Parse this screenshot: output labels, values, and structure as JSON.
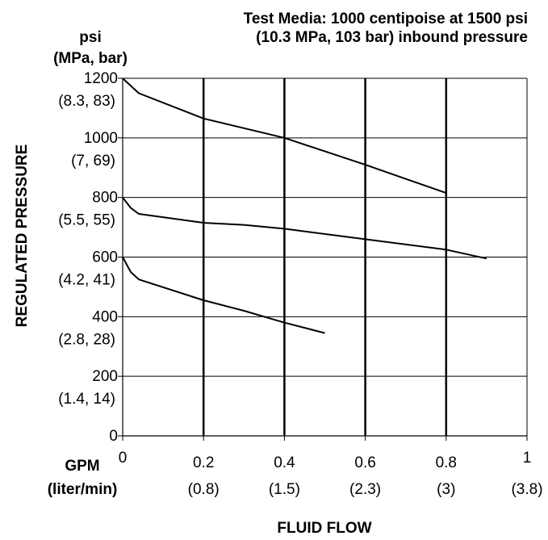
{
  "chart_data": {
    "type": "line",
    "title_lines": [
      "Test Media: 1000 centipoise at 1500 psi",
      "(10.3 MPa, 103 bar) inbound pressure"
    ],
    "xlabel": "FLUID FLOW",
    "ylabel": "REGULATED PRESSURE",
    "x_unit_lines": [
      "GPM",
      "(liter/min)"
    ],
    "y_unit_lines": [
      "psi",
      "(MPa, bar)"
    ],
    "xlim": [
      0,
      1
    ],
    "ylim": [
      0,
      1200
    ],
    "x_ticks": [
      {
        "value": 0,
        "primary": "0",
        "secondary": ""
      },
      {
        "value": 0.2,
        "primary": "0.2",
        "secondary": "(0.8)"
      },
      {
        "value": 0.4,
        "primary": "0.4",
        "secondary": "(1.5)"
      },
      {
        "value": 0.6,
        "primary": "0.6",
        "secondary": "(2.3)"
      },
      {
        "value": 0.8,
        "primary": "0.8",
        "secondary": "(3)"
      },
      {
        "value": 1,
        "primary": "1",
        "secondary": "(3.8)"
      }
    ],
    "y_ticks": [
      {
        "value": 0,
        "primary": "0",
        "secondary": ""
      },
      {
        "value": 200,
        "primary": "200",
        "secondary": "(1.4, 14)"
      },
      {
        "value": 400,
        "primary": "400",
        "secondary": "(2.8, 28)"
      },
      {
        "value": 600,
        "primary": "600",
        "secondary": "(4.2, 41)"
      },
      {
        "value": 800,
        "primary": "800",
        "secondary": "(5.5, 55)"
      },
      {
        "value": 1000,
        "primary": "1000",
        "secondary": "(7, 69)"
      },
      {
        "value": 1200,
        "primary": "1200",
        "secondary": "(8.3, 83)"
      }
    ],
    "grid": {
      "horizontal": true,
      "vertical": true
    },
    "series": [
      {
        "x": [
          0,
          0.04,
          0.2,
          0.4,
          0.6,
          0.8
        ],
        "y": [
          1200,
          1150,
          1065,
          1000,
          910,
          815
        ]
      },
      {
        "x": [
          0,
          0.02,
          0.04,
          0.2,
          0.3,
          0.4,
          0.6,
          0.8,
          0.9
        ],
        "y": [
          800,
          765,
          745,
          715,
          708,
          695,
          660,
          625,
          595
        ]
      },
      {
        "x": [
          0,
          0.02,
          0.04,
          0.2,
          0.3,
          0.4,
          0.5
        ],
        "y": [
          600,
          550,
          525,
          455,
          420,
          380,
          345
        ]
      }
    ]
  }
}
